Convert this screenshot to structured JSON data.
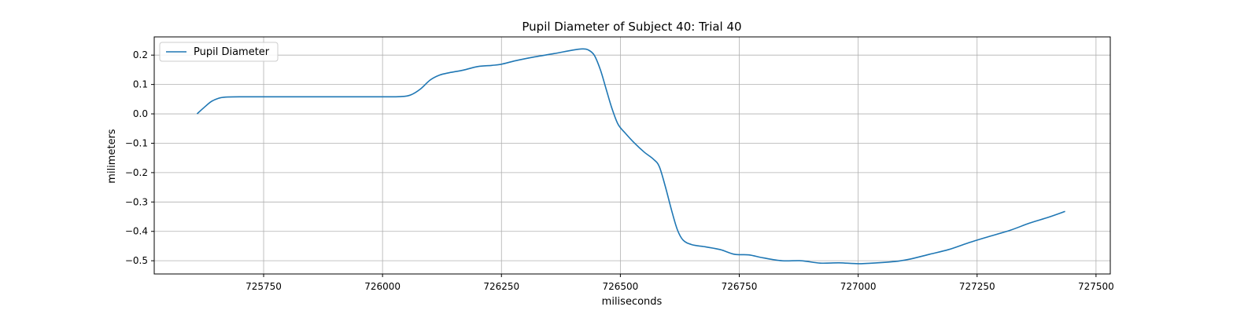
{
  "chart_data": {
    "type": "line",
    "title": "Pupil Diameter of Subject 40: Trial 40",
    "xlabel": "miliseconds",
    "ylabel": "milimeters",
    "xlim": [
      725520,
      727530
    ],
    "ylim": [
      -0.545,
      0.262
    ],
    "xticks": [
      725750,
      726000,
      726250,
      726500,
      726750,
      727000,
      727250,
      727500
    ],
    "xtick_labels": [
      "725750",
      "726000",
      "726250",
      "726500",
      "726750",
      "727000",
      "727250",
      "727500"
    ],
    "yticks": [
      0.2,
      0.1,
      0.0,
      -0.1,
      -0.2,
      -0.3,
      -0.4,
      -0.5
    ],
    "ytick_labels": [
      "0.2",
      "0.1",
      "0.0",
      "−0.1",
      "−0.2",
      "−0.3",
      "−0.4",
      "−0.5"
    ],
    "grid": true,
    "legend_position": "top-left",
    "series": [
      {
        "name": "Pupil Diameter",
        "color": "#1f77b4",
        "points": [
          [
            725610,
            0.0
          ],
          [
            725625,
            0.022
          ],
          [
            725640,
            0.042
          ],
          [
            725655,
            0.053
          ],
          [
            725670,
            0.057
          ],
          [
            725700,
            0.058
          ],
          [
            725800,
            0.058
          ],
          [
            725900,
            0.058
          ],
          [
            726000,
            0.058
          ],
          [
            726040,
            0.059
          ],
          [
            726060,
            0.065
          ],
          [
            726080,
            0.085
          ],
          [
            726100,
            0.115
          ],
          [
            726120,
            0.132
          ],
          [
            726140,
            0.14
          ],
          [
            726170,
            0.149
          ],
          [
            726200,
            0.161
          ],
          [
            726230,
            0.165
          ],
          [
            726250,
            0.169
          ],
          [
            726280,
            0.181
          ],
          [
            726320,
            0.194
          ],
          [
            726360,
            0.205
          ],
          [
            726400,
            0.217
          ],
          [
            726420,
            0.221
          ],
          [
            726432,
            0.218
          ],
          [
            726445,
            0.2
          ],
          [
            726458,
            0.15
          ],
          [
            726470,
            0.085
          ],
          [
            726482,
            0.02
          ],
          [
            726495,
            -0.035
          ],
          [
            726510,
            -0.065
          ],
          [
            726530,
            -0.1
          ],
          [
            726550,
            -0.13
          ],
          [
            726570,
            -0.155
          ],
          [
            726582,
            -0.18
          ],
          [
            726595,
            -0.25
          ],
          [
            726608,
            -0.33
          ],
          [
            726620,
            -0.395
          ],
          [
            726632,
            -0.43
          ],
          [
            726650,
            -0.445
          ],
          [
            726680,
            -0.453
          ],
          [
            726710,
            -0.462
          ],
          [
            726740,
            -0.478
          ],
          [
            726770,
            -0.48
          ],
          [
            726800,
            -0.49
          ],
          [
            726840,
            -0.5
          ],
          [
            726880,
            -0.5
          ],
          [
            726920,
            -0.508
          ],
          [
            726960,
            -0.507
          ],
          [
            727000,
            -0.51
          ],
          [
            727040,
            -0.507
          ],
          [
            727080,
            -0.502
          ],
          [
            727110,
            -0.494
          ],
          [
            727150,
            -0.478
          ],
          [
            727190,
            -0.462
          ],
          [
            727230,
            -0.44
          ],
          [
            727270,
            -0.42
          ],
          [
            727320,
            -0.396
          ],
          [
            727360,
            -0.372
          ],
          [
            727400,
            -0.352
          ],
          [
            727435,
            -0.332
          ]
        ]
      }
    ]
  }
}
